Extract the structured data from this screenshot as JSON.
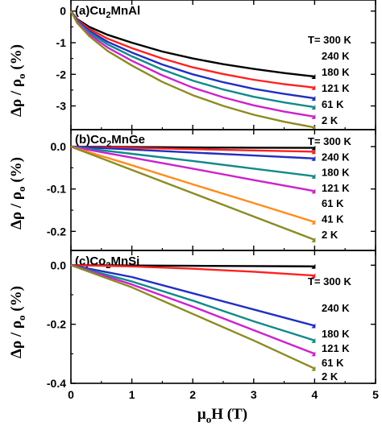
{
  "chart_data": [
    {
      "type": "line",
      "panel_label": "(a)Cu",
      "panel_label_sub": "2",
      "panel_label_rest": "MnAl",
      "xlim": [
        0,
        5
      ],
      "ylim": [
        -3.75,
        0.35
      ],
      "y_ticks": [
        0,
        -1,
        -2,
        -3
      ],
      "y_tick_labels": [
        "0",
        "-1",
        "-2",
        "-3"
      ],
      "series": [
        {
          "name": "T= 300 K",
          "color": "#000000",
          "x": [
            0,
            0.1,
            0.3,
            0.6,
            1,
            1.5,
            2,
            2.5,
            3,
            3.5,
            4
          ],
          "y": [
            0,
            -0.25,
            -0.5,
            -0.75,
            -1.0,
            -1.28,
            -1.5,
            -1.68,
            -1.83,
            -1.96,
            -2.07
          ]
        },
        {
          "name": "240 K",
          "color": "#ff2020",
          "x": [
            0,
            0.1,
            0.3,
            0.6,
            1,
            1.5,
            2,
            2.5,
            3,
            3.5,
            4
          ],
          "y": [
            0,
            -0.27,
            -0.56,
            -0.87,
            -1.17,
            -1.5,
            -1.78,
            -1.99,
            -2.17,
            -2.31,
            -2.42
          ]
        },
        {
          "name": "180 K",
          "color": "#2030c0",
          "x": [
            0,
            0.1,
            0.3,
            0.6,
            1,
            1.5,
            2,
            2.5,
            3,
            3.5,
            4
          ],
          "y": [
            0,
            -0.3,
            -0.62,
            -0.97,
            -1.31,
            -1.69,
            -2.0,
            -2.25,
            -2.46,
            -2.62,
            -2.76
          ]
        },
        {
          "name": "121 K",
          "color": "#108a8a",
          "x": [
            0,
            0.1,
            0.3,
            0.6,
            1,
            1.5,
            2,
            2.5,
            3,
            3.5,
            4
          ],
          "y": [
            0,
            -0.32,
            -0.67,
            -1.05,
            -1.43,
            -1.85,
            -2.2,
            -2.48,
            -2.71,
            -2.89,
            -3.04
          ]
        },
        {
          "name": "61 K",
          "color": "#cc22cc",
          "x": [
            0,
            0.1,
            0.3,
            0.6,
            1,
            1.5,
            2,
            2.5,
            3,
            3.5,
            4
          ],
          "y": [
            0,
            -0.34,
            -0.73,
            -1.15,
            -1.57,
            -2.03,
            -2.42,
            -2.73,
            -2.98,
            -3.18,
            -3.34
          ]
        },
        {
          "name": "2 K",
          "color": "#8b8b22",
          "x": [
            0,
            0.1,
            0.3,
            0.6,
            1,
            1.5,
            2,
            2.5,
            3,
            3.5,
            4
          ],
          "y": [
            0,
            -0.37,
            -0.79,
            -1.26,
            -1.72,
            -2.24,
            -2.66,
            -3.0,
            -3.28,
            -3.5,
            -3.68
          ]
        }
      ]
    },
    {
      "type": "line",
      "panel_label": "(b)Co",
      "panel_label_sub": "2",
      "panel_label_rest": "MnGe",
      "xlim": [
        0,
        5
      ],
      "ylim": [
        -0.245,
        0.04
      ],
      "y_ticks": [
        0,
        -0.1,
        -0.2
      ],
      "y_tick_labels": [
        "0.0",
        "-0.1",
        "-0.2"
      ],
      "series": [
        {
          "name": "T= 300 K",
          "color": "#000000",
          "x": [
            0,
            1,
            2,
            3,
            4
          ],
          "y": [
            0,
            -0.001,
            -0.002,
            -0.0025,
            -0.003
          ]
        },
        {
          "name": "240 K",
          "color": "#ff2020",
          "x": [
            0,
            1,
            2,
            3,
            4
          ],
          "y": [
            0,
            -0.003,
            -0.006,
            -0.009,
            -0.012
          ]
        },
        {
          "name": "180 K",
          "color": "#2030c0",
          "x": [
            0,
            1,
            2,
            3,
            4
          ],
          "y": [
            0,
            -0.007,
            -0.014,
            -0.021,
            -0.028
          ]
        },
        {
          "name": "121 K",
          "color": "#108a8a",
          "x": [
            0,
            1,
            2,
            3,
            4
          ],
          "y": [
            0,
            -0.017,
            -0.034,
            -0.052,
            -0.07
          ]
        },
        {
          "name": "61 K",
          "color": "#cc22cc",
          "x": [
            0,
            1,
            2,
            3,
            4
          ],
          "y": [
            0,
            -0.026,
            -0.052,
            -0.079,
            -0.105
          ]
        },
        {
          "name": "41 K",
          "color": "#ff8c1a",
          "x": [
            0,
            1,
            2,
            3,
            4
          ],
          "y": [
            0,
            -0.044,
            -0.089,
            -0.133,
            -0.178
          ]
        },
        {
          "name": "2 K",
          "color": "#8b8b22",
          "x": [
            0,
            1,
            2,
            3,
            4
          ],
          "y": [
            0,
            -0.055,
            -0.11,
            -0.165,
            -0.22
          ]
        }
      ]
    },
    {
      "type": "line",
      "panel_label": "(c)Co",
      "panel_label_sub": "2",
      "panel_label_rest": "MnSi",
      "xlim": [
        0,
        5
      ],
      "ylim": [
        -0.4,
        0.05
      ],
      "y_ticks": [
        0,
        -0.2,
        -0.4
      ],
      "y_tick_labels": [
        "0.0",
        "-0.2",
        "-0.4"
      ],
      "x_ticks": [
        0,
        1,
        2,
        3,
        4,
        5
      ],
      "x_tick_labels": [
        "0",
        "1",
        "2",
        "3",
        "4",
        "5"
      ],
      "series": [
        {
          "name": "T= 300 K",
          "color": "#000000",
          "x": [
            0,
            1,
            2,
            3,
            4
          ],
          "y": [
            0,
            -0.001,
            -0.002,
            -0.003,
            -0.004
          ]
        },
        {
          "name": "240 K",
          "color": "#ff2020",
          "x": [
            0,
            1,
            2,
            3,
            4
          ],
          "y": [
            0,
            -0.004,
            -0.012,
            -0.022,
            -0.035
          ]
        },
        {
          "name": "180 K",
          "color": "#2030c0",
          "x": [
            0,
            1,
            2,
            3,
            4
          ],
          "y": [
            0,
            -0.04,
            -0.095,
            -0.15,
            -0.205
          ]
        },
        {
          "name": "121 K",
          "color": "#108a8a",
          "x": [
            0,
            1,
            2,
            3,
            4
          ],
          "y": [
            0,
            -0.055,
            -0.12,
            -0.19,
            -0.255
          ]
        },
        {
          "name": "61 K",
          "color": "#cc22cc",
          "x": [
            0,
            1,
            2,
            3,
            4
          ],
          "y": [
            0,
            -0.065,
            -0.14,
            -0.22,
            -0.3
          ]
        },
        {
          "name": "2 K",
          "color": "#8b8b22",
          "x": [
            0,
            1,
            2,
            3,
            4
          ],
          "y": [
            0,
            -0.075,
            -0.165,
            -0.255,
            -0.35
          ]
        }
      ]
    }
  ],
  "xlabel": {
    "mu": "μ",
    "sub": "o",
    "rest": "H (T)"
  },
  "ylabel": {
    "lead": "Δρ / ρ",
    "sub": "o",
    "rest": " (%)"
  }
}
